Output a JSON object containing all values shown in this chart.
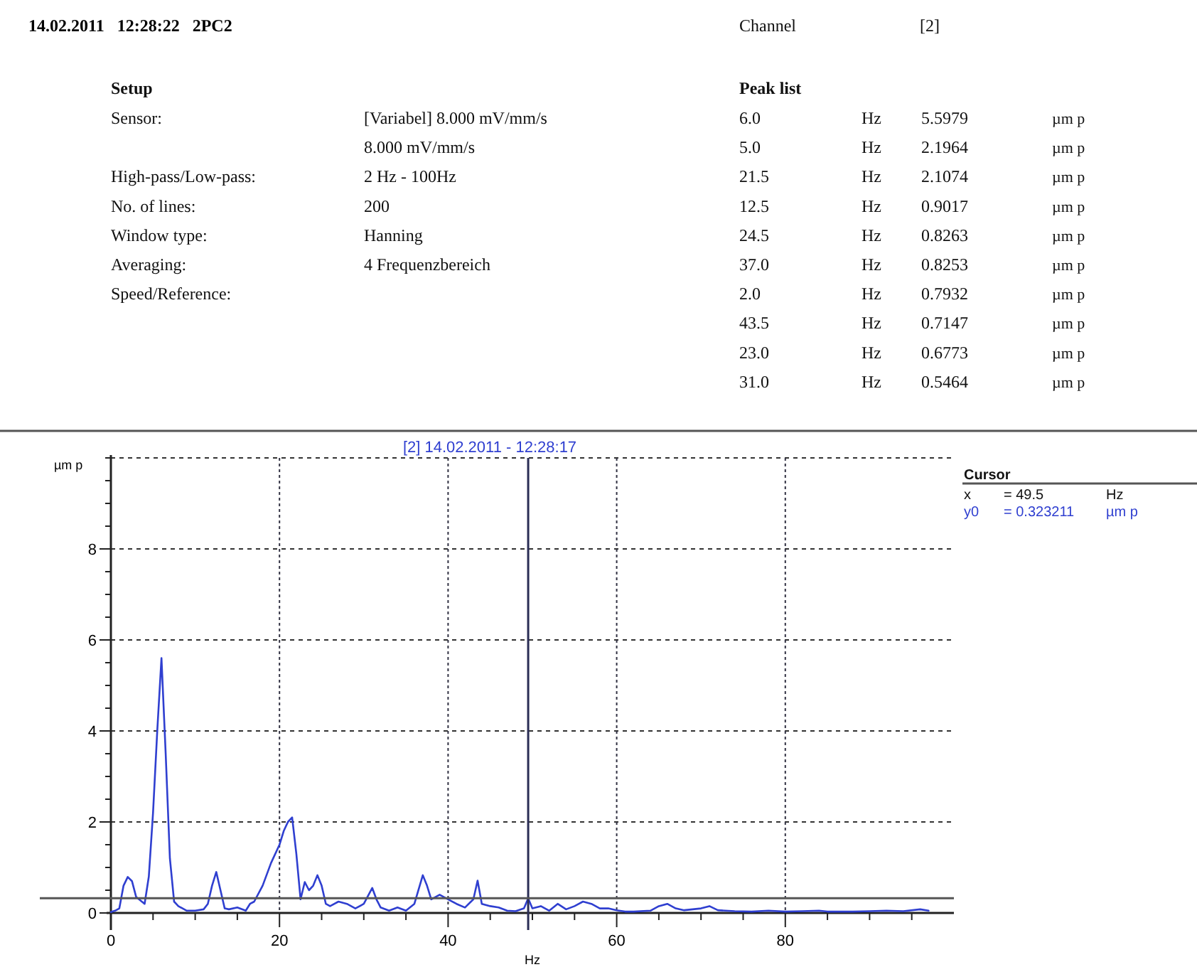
{
  "chart_data": {
    "type": "line",
    "title": "14.02.2011 12:28:22 2PC2",
    "subtitle": "[2] 14.02.2011 - 12:28:17",
    "xlabel": "Hz",
    "ylabel": "µm p",
    "annotations": [
      "Channel",
      "[2]",
      "Setup",
      "Peak list",
      "Sensor:",
      "High-pass/Low-pass:",
      "No. of lines:",
      "Window type:",
      "Averaging:",
      "Speed/Reference:",
      "[Variabel] 8.000 mV/mm/s",
      "8.000 mV/mm/s",
      "2 Hz - 100Hz",
      "200",
      "Hanning",
      "4 Frequenzbereich",
      "6.0",
      "Hz",
      "5.5979",
      "µm p",
      "5.0",
      "Hz",
      "2.1964",
      "µm p",
      "21.5",
      "Hz",
      "2.1074",
      "µm p",
      "12.5",
      "Hz",
      "0.9017",
      "µm p",
      "24.5",
      "Hz",
      "0.8263",
      "µm p",
      "37.0",
      "Hz",
      "0.8253",
      "µm p",
      "2.0",
      "Hz",
      "0.7932",
      "µm p",
      "43.5",
      "Hz",
      "0.7147",
      "µm p",
      "23.0",
      "Hz",
      "0.6773",
      "µm p",
      "31.0",
      "Hz",
      "0.5464",
      "µm p",
      "Cursor",
      "x",
      "= 49.5",
      "Hz",
      "y0",
      "= 0.323211",
      "µm p"
    ],
    "x": [
      0,
      0.5,
      1,
      1.5,
      2,
      2.5,
      3,
      4,
      4.5,
      5,
      5.5,
      6,
      6.5,
      7,
      7.5,
      8,
      9,
      10,
      11,
      11.5,
      12,
      12.5,
      13,
      13.5,
      14,
      15,
      16,
      16.5,
      17,
      18,
      19,
      20,
      20.5,
      21,
      21.5,
      22,
      22.5,
      23,
      23.5,
      24,
      24.5,
      25,
      25.5,
      26,
      27,
      28,
      29,
      30,
      31,
      31.5,
      32,
      33,
      34,
      35,
      36,
      37,
      37.5,
      38,
      39,
      40,
      41,
      42,
      43,
      43.5,
      44,
      45,
      46,
      47,
      48,
      49,
      49.5,
      50,
      51,
      52,
      53,
      54,
      55,
      56,
      57,
      58,
      59,
      60,
      61,
      62,
      64,
      65,
      66,
      67,
      68,
      70,
      71,
      72,
      74,
      76,
      78,
      80,
      82,
      84,
      85,
      88,
      90,
      92,
      94,
      96,
      97
    ],
    "series": [
      {
        "color": "#2f3fd0",
        "values": [
          0.02,
          0.05,
          0.1,
          0.6,
          0.79,
          0.7,
          0.35,
          0.2,
          0.8,
          2.2,
          4.0,
          5.6,
          3.5,
          1.2,
          0.25,
          0.15,
          0.05,
          0.05,
          0.08,
          0.2,
          0.6,
          0.9,
          0.5,
          0.1,
          0.08,
          0.12,
          0.05,
          0.2,
          0.25,
          0.6,
          1.1,
          1.5,
          1.8,
          2.0,
          2.1,
          1.3,
          0.3,
          0.68,
          0.5,
          0.6,
          0.83,
          0.6,
          0.2,
          0.15,
          0.25,
          0.2,
          0.1,
          0.2,
          0.55,
          0.3,
          0.12,
          0.05,
          0.12,
          0.05,
          0.2,
          0.83,
          0.6,
          0.3,
          0.4,
          0.3,
          0.2,
          0.12,
          0.3,
          0.71,
          0.2,
          0.15,
          0.12,
          0.05,
          0.04,
          0.1,
          0.32,
          0.1,
          0.15,
          0.05,
          0.2,
          0.08,
          0.15,
          0.25,
          0.2,
          0.1,
          0.1,
          0.06,
          0.03,
          0.03,
          0.05,
          0.15,
          0.2,
          0.1,
          0.06,
          0.1,
          0.15,
          0.06,
          0.04,
          0.03,
          0.05,
          0.03,
          0.04,
          0.05,
          0.03,
          0.03,
          0.04,
          0.05,
          0.04,
          0.08,
          0.05
        ]
      }
    ],
    "xlim": [
      0,
      100
    ],
    "xticks": [
      0,
      {
        "value": 5,
        "label": null
      },
      {
        "value": 10,
        "label": null
      },
      {
        "value": 15,
        "label": null
      },
      20,
      {
        "value": 25,
        "label": null
      },
      {
        "value": 30,
        "label": null
      },
      {
        "value": 35,
        "label": null
      },
      40,
      {
        "value": 45,
        "label": null
      },
      {
        "value": 50,
        "label": null
      },
      {
        "value": 55,
        "label": null
      },
      60,
      {
        "value": 65,
        "label": null
      },
      {
        "value": 70,
        "label": null
      },
      {
        "value": 75,
        "label": null
      },
      80,
      {
        "value": 85,
        "label": null
      },
      {
        "value": 90,
        "label": null
      },
      {
        "value": 95,
        "label": null
      }
    ],
    "ylim": [
      0,
      10
    ],
    "yticks": [
      0,
      {
        "value": 0.5,
        "label": null
      },
      {
        "value": 1,
        "label": null
      },
      {
        "value": 1.5,
        "label": null
      },
      2,
      {
        "value": 2.5,
        "label": null
      },
      {
        "value": 3,
        "label": null
      },
      {
        "value": 3.5,
        "label": null
      },
      4,
      {
        "value": 4.5,
        "label": null
      },
      {
        "value": 5,
        "label": null
      },
      {
        "value": 5.5,
        "label": null
      },
      6,
      {
        "value": 6.5,
        "label": null
      },
      {
        "value": 7,
        "label": null
      },
      {
        "value": 7.5,
        "label": null
      },
      8,
      {
        "value": 8.5,
        "label": null
      },
      {
        "value": 9,
        "label": null
      },
      {
        "value": 9.5,
        "label": null
      },
      {
        "value": 10,
        "label": null
      }
    ],
    "grid": true,
    "ref_lines": [
      {
        "axis": "x",
        "value": 49.5,
        "color": "#2a2d55"
      },
      {
        "axis": "y",
        "value": 0.323211,
        "color": "#555555"
      }
    ],
    "line_style": "solid",
    "marker": "none"
  }
}
